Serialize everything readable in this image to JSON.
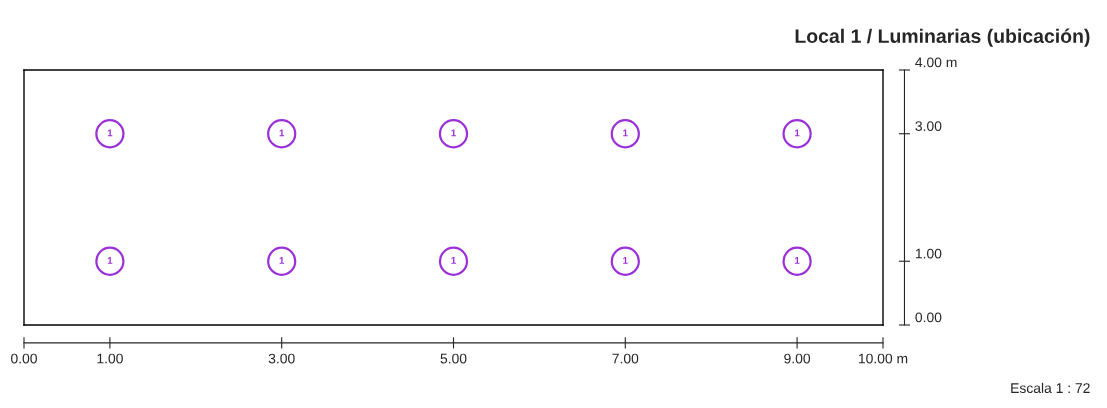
{
  "chart_data": {
    "type": "scatter",
    "title": "Local 1 / Luminarias (ubicación)",
    "x": [
      1,
      3,
      5,
      7,
      9,
      1,
      3,
      5,
      7,
      9
    ],
    "values": [
      3,
      3,
      3,
      3,
      3,
      1,
      1,
      1,
      1,
      1
    ],
    "color": "#9b30d9",
    "marker": "circle",
    "xlim": [
      0,
      10
    ],
    "ylim": [
      0,
      4
    ],
    "xticks": [
      {
        "value": 0,
        "label": "0.00"
      },
      {
        "value": 1,
        "label": "1.00"
      },
      {
        "value": 3,
        "label": "3.00"
      },
      {
        "value": 5,
        "label": "5.00"
      },
      {
        "value": 7,
        "label": "7.00"
      },
      {
        "value": 9,
        "label": "9.00"
      },
      {
        "value": 10,
        "label": "10.00 m"
      }
    ],
    "yticks": [
      {
        "value": 0,
        "label": "0.00"
      },
      {
        "value": 1,
        "label": "1.00"
      },
      {
        "value": 3,
        "label": "3.00"
      },
      {
        "value": 4,
        "label": "4.00 m"
      }
    ],
    "annotations": [
      {
        "text": "1",
        "x": 1,
        "y": 3
      },
      {
        "text": "1",
        "x": 3,
        "y": 3
      },
      {
        "text": "1",
        "x": 5,
        "y": 3
      },
      {
        "text": "1",
        "x": 7,
        "y": 3
      },
      {
        "text": "1",
        "x": 9,
        "y": 3
      },
      {
        "text": "1",
        "x": 1,
        "y": 1
      },
      {
        "text": "1",
        "x": 3,
        "y": 1
      },
      {
        "text": "1",
        "x": 5,
        "y": 1
      },
      {
        "text": "1",
        "x": 7,
        "y": 1
      },
      {
        "text": "1",
        "x": 9,
        "y": 1
      },
      "Escala 1 : 72"
    ]
  }
}
